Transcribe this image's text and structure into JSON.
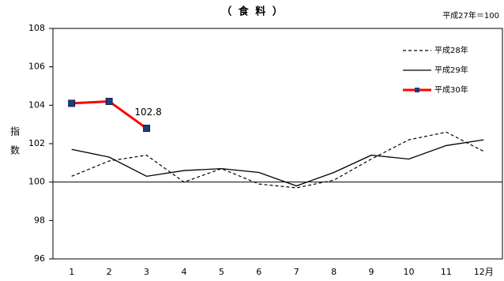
{
  "chart_data": {
    "type": "line",
    "title": "（ 食 料 ）",
    "note": "平成27年＝100",
    "y_label": "指数",
    "categories": [
      "1",
      "2",
      "3",
      "4",
      "5",
      "6",
      "7",
      "8",
      "9",
      "10",
      "11",
      "12月"
    ],
    "ylim": [
      96,
      108
    ],
    "yticks": [
      96,
      98,
      100,
      102,
      104,
      106,
      108
    ],
    "reference_line": 100,
    "legend_position": "upper right",
    "series": [
      {
        "name": "平成28年",
        "color": "#000000",
        "style": "dashed",
        "values": [
          100.3,
          101.1,
          101.4,
          100.0,
          100.7,
          99.9,
          99.7,
          100.1,
          101.2,
          102.2,
          102.6,
          101.6
        ]
      },
      {
        "name": "平成29年",
        "color": "#000000",
        "style": "solid",
        "values": [
          101.7,
          101.3,
          100.3,
          100.6,
          100.7,
          100.5,
          99.8,
          100.5,
          101.4,
          101.2,
          101.9,
          102.2
        ]
      },
      {
        "name": "平成30年",
        "color": "#ff0000",
        "style": "thick",
        "marker_color": "#1f3c7a",
        "values": [
          104.1,
          104.2,
          102.8,
          null,
          null,
          null,
          null,
          null,
          null,
          null,
          null,
          null
        ]
      }
    ],
    "data_labels": [
      {
        "series": 2,
        "index": 2
      }
    ]
  }
}
